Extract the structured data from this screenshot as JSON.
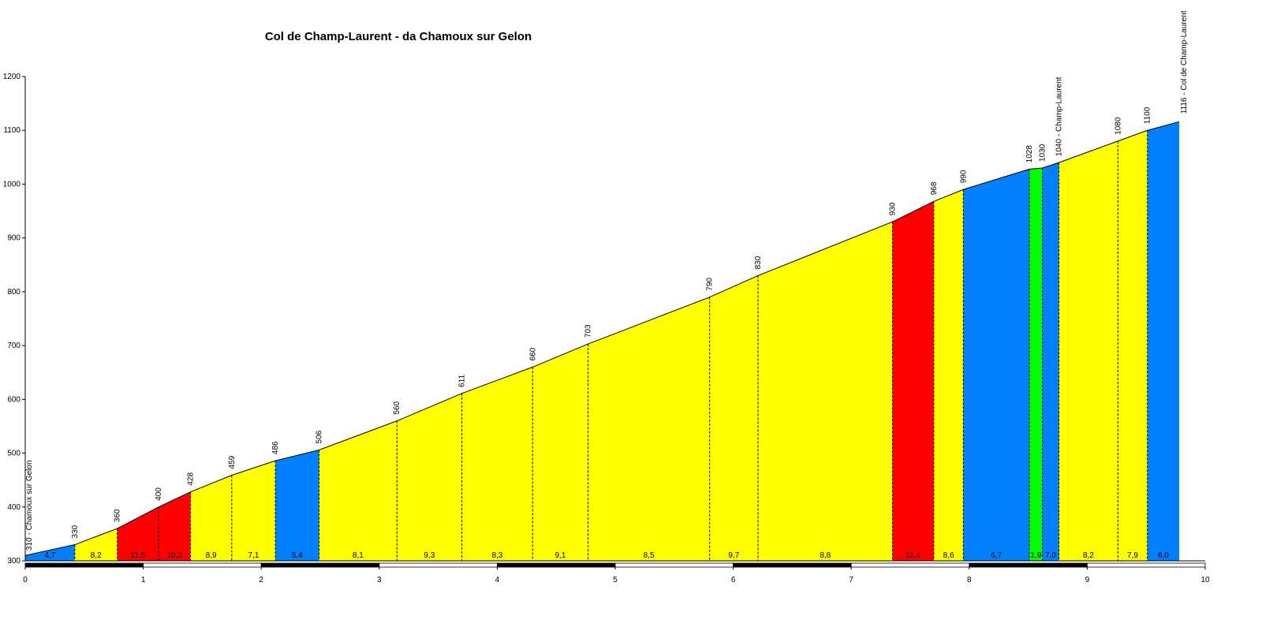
{
  "chart_data": {
    "type": "area",
    "title": "Col de Champ-Laurent - da Chamoux sur Gelon",
    "xlabel": "",
    "ylabel": "",
    "xlim": [
      0,
      10
    ],
    "ylim": [
      300,
      1200
    ],
    "x_ticks": [
      "0",
      "1",
      "2",
      "3",
      "4",
      "5",
      "6",
      "7",
      "8",
      "9",
      "10"
    ],
    "y_ticks": [
      "300",
      "400",
      "500",
      "600",
      "700",
      "800",
      "900",
      "1000",
      "1100",
      "1200"
    ],
    "grid": false,
    "gradient_colors": {
      "low": "#0080ff",
      "mid": "#ffff00",
      "high": "#ff0000",
      "flat": "#00ff00"
    },
    "points": [
      {
        "km": 0.0,
        "alt": 310,
        "label": "310 - Chamoux sur Gelon"
      },
      {
        "km": 0.42,
        "alt": 330,
        "label": "330"
      },
      {
        "km": 0.78,
        "alt": 360,
        "label": "360"
      },
      {
        "km": 1.13,
        "alt": 400,
        "label": "400"
      },
      {
        "km": 1.4,
        "alt": 428,
        "label": "428"
      },
      {
        "km": 1.75,
        "alt": 459,
        "label": "459"
      },
      {
        "km": 2.12,
        "alt": 486,
        "label": "486"
      },
      {
        "km": 2.49,
        "alt": 506,
        "label": "506"
      },
      {
        "km": 3.15,
        "alt": 560,
        "label": "560"
      },
      {
        "km": 3.7,
        "alt": 611,
        "label": "611"
      },
      {
        "km": 4.3,
        "alt": 660,
        "label": "660"
      },
      {
        "km": 4.77,
        "alt": 703,
        "label": "703"
      },
      {
        "km": 5.8,
        "alt": 790,
        "label": "790"
      },
      {
        "km": 6.21,
        "alt": 830,
        "label": "830"
      },
      {
        "km": 7.35,
        "alt": 930,
        "label": "930"
      },
      {
        "km": 7.7,
        "alt": 968,
        "label": "968"
      },
      {
        "km": 7.95,
        "alt": 990,
        "label": "990"
      },
      {
        "km": 8.51,
        "alt": 1028,
        "label": "1028"
      },
      {
        "km": 8.62,
        "alt": 1030,
        "label": "1030"
      },
      {
        "km": 8.76,
        "alt": 1040,
        "label": "1040 - Champ-Laurent"
      },
      {
        "km": 9.26,
        "alt": 1080,
        "label": "1080"
      },
      {
        "km": 9.51,
        "alt": 1100,
        "label": "1100"
      },
      {
        "km": 9.78,
        "alt": 1116,
        "label": "1116 - Col de Champ-Laurent"
      }
    ],
    "segments": [
      {
        "gradient": "4,7",
        "color": "#0080ff"
      },
      {
        "gradient": "8,2",
        "color": "#ffff00"
      },
      {
        "gradient": "11,5",
        "color": "#ff0000"
      },
      {
        "gradient": "10,2",
        "color": "#ff0000"
      },
      {
        "gradient": "8,9",
        "color": "#ffff00"
      },
      {
        "gradient": "7,1",
        "color": "#ffff00"
      },
      {
        "gradient": "5,4",
        "color": "#0080ff"
      },
      {
        "gradient": "8,1",
        "color": "#ffff00"
      },
      {
        "gradient": "9,3",
        "color": "#ffff00"
      },
      {
        "gradient": "8,3",
        "color": "#ffff00"
      },
      {
        "gradient": "9,1",
        "color": "#ffff00"
      },
      {
        "gradient": "8,5",
        "color": "#ffff00"
      },
      {
        "gradient": "9,7",
        "color": "#ffff00"
      },
      {
        "gradient": "8,8",
        "color": "#ffff00"
      },
      {
        "gradient": "11,4",
        "color": "#ff0000"
      },
      {
        "gradient": "8,6",
        "color": "#ffff00"
      },
      {
        "gradient": "6,7",
        "color": "#0080ff"
      },
      {
        "gradient": "1,9",
        "color": "#00ff00"
      },
      {
        "gradient": "7,0",
        "color": "#0080ff"
      },
      {
        "gradient": "8,2",
        "color": "#ffff00"
      },
      {
        "gradient": "7,9",
        "color": "#ffff00"
      },
      {
        "gradient": "6,0",
        "color": "#0080ff"
      }
    ]
  }
}
